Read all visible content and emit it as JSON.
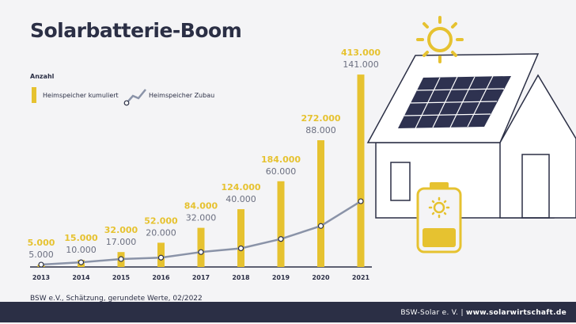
{
  "title": "Solarbatterie-Boom",
  "source": "BSW e.V., Schätzung, gerundete Werte, 02/2022",
  "footer": {
    "org": "BSW-Solar e. V.",
    "separator": "|",
    "url": "www.solarwirtschaft.de"
  },
  "legend": {
    "title": "Anzahl",
    "bars_label": "Heimspeicher kumuliert",
    "line_label": "Heimspeicher Zubau"
  },
  "colors": {
    "bar": "#e6c230",
    "line": "#8a93a8",
    "text_dark": "#2b2f45",
    "footer": "#2b2f45"
  },
  "chart_data": {
    "type": "bar",
    "categories": [
      "2013",
      "2014",
      "2015",
      "2016",
      "2017",
      "2018",
      "2019",
      "2020",
      "2021"
    ],
    "series": [
      {
        "name": "Heimspeicher kumuliert",
        "type": "bar",
        "values": [
          5000,
          15000,
          32000,
          52000,
          84000,
          124000,
          184000,
          272000,
          413000
        ],
        "labels": [
          "5.000",
          "15.000",
          "32.000",
          "52.000",
          "84.000",
          "124.000",
          "184.000",
          "272.000",
          "413.000"
        ]
      },
      {
        "name": "Heimspeicher Zubau",
        "type": "line",
        "values": [
          5000,
          10000,
          17000,
          20000,
          32000,
          40000,
          60000,
          88000,
          141000
        ],
        "labels": [
          "5.000",
          "10.000",
          "17.000",
          "20.000",
          "32.000",
          "40.000",
          "60.000",
          "88.000",
          "141.000"
        ]
      }
    ],
    "ylim": [
      0,
      420000
    ],
    "grid": false,
    "legend_position": "top-left"
  }
}
